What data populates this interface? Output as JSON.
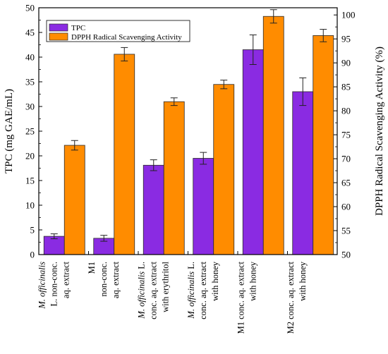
{
  "chart_data": {
    "type": "bar",
    "categories": [
      [
        "M. officinalis",
        "L. non-conc.",
        "aq. extract"
      ],
      [
        "M1",
        "non-conc.",
        "aq. extract"
      ],
      [
        "M. officinalis L.",
        "conc. aq. extract",
        "with erythritol"
      ],
      [
        "M. officinalis L.",
        "conc. aq. extract",
        "with honey"
      ],
      [
        "M1  conc. aq. extract",
        "with honey"
      ],
      [
        "M2  conc. aq. extract",
        "with honey"
      ]
    ],
    "series": [
      {
        "name": "TPC",
        "axis": "left",
        "color": "#8a2be2",
        "values": [
          3.7,
          3.3,
          18.1,
          19.5,
          41.5,
          33.0
        ],
        "errors": [
          0.5,
          0.6,
          1.1,
          1.2,
          3.0,
          2.8
        ]
      },
      {
        "name": "DPPH Radical Scavenging Activity",
        "axis": "right",
        "color": "#ff8c00",
        "values": [
          72.8,
          91.8,
          81.9,
          85.5,
          99.7,
          95.7
        ],
        "errors": [
          1.0,
          1.4,
          0.8,
          0.9,
          1.4,
          1.3
        ]
      }
    ],
    "y_left": {
      "label": "TPC (mg GAE/mL)",
      "lim": [
        0,
        50
      ],
      "ticks": [
        0,
        5,
        10,
        15,
        20,
        25,
        30,
        35,
        40,
        45,
        50
      ]
    },
    "y_right": {
      "label": "DPPH Radical Scavenging Activity (%)",
      "lim": [
        50,
        101.5
      ],
      "ticks": [
        50,
        55,
        60,
        65,
        70,
        75,
        80,
        85,
        90,
        95,
        100
      ]
    },
    "legend": "top-left",
    "grid": false
  }
}
